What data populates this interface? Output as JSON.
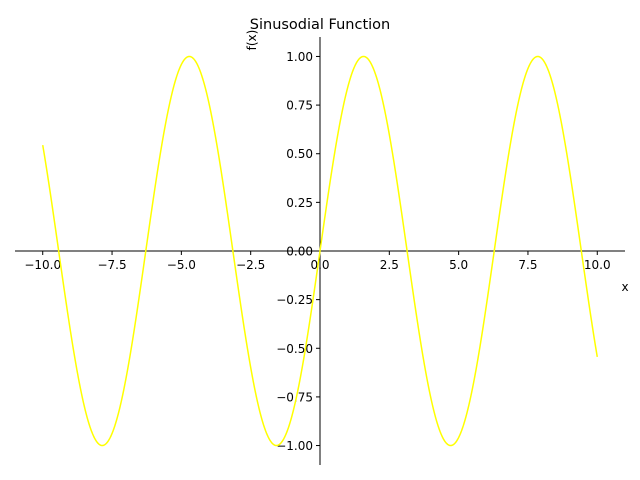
{
  "chart_data": {
    "type": "line",
    "title": "Sinusodial Function",
    "xlabel": "x",
    "ylabel": "f(x)",
    "function": "sin(x)",
    "xlim": [
      -11,
      11
    ],
    "ylim": [
      -1.1,
      1.1
    ],
    "x_range": [
      -10,
      10
    ],
    "x_ticks": [
      -10,
      -7.5,
      -5,
      -2.5,
      0,
      2.5,
      5,
      7.5,
      10
    ],
    "x_tick_labels": [
      "−10.0",
      "−7.5",
      "−5.0",
      "−2.5",
      "0.0",
      "2.5",
      "5.0",
      "7.5",
      "10.0"
    ],
    "y_ticks": [
      1,
      0.75,
      0.5,
      0.25,
      0,
      -0.25,
      -0.5,
      -0.75,
      -1
    ],
    "y_tick_labels": [
      "1.00",
      "0.75",
      "0.50",
      "0.25",
      "0.00",
      "−0.25",
      "−0.50",
      "−0.75",
      "−1.00"
    ],
    "series": [
      {
        "color": "#ffff00"
      }
    ],
    "grid": false,
    "legend": false,
    "spines": "centered at origin"
  }
}
